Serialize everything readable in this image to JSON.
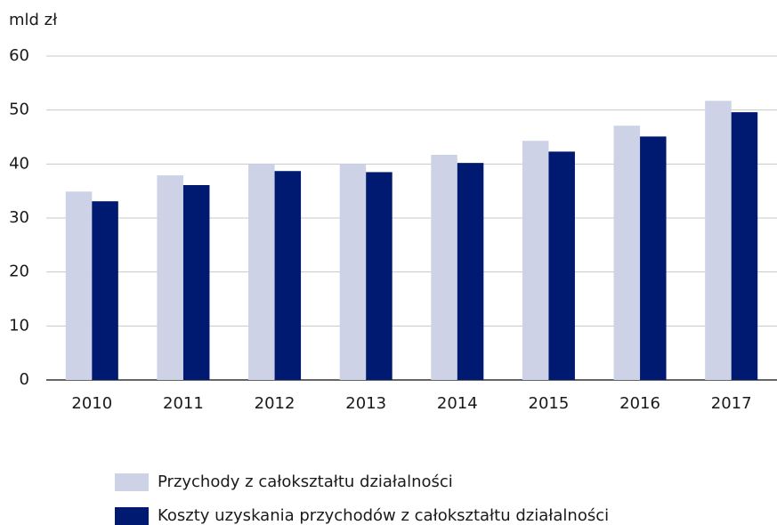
{
  "chart_data": {
    "type": "bar",
    "y_label": "mld zł",
    "categories": [
      "2010",
      "2011",
      "2012",
      "2013",
      "2014",
      "2015",
      "2016",
      "2017"
    ],
    "series": [
      {
        "name": "Przychody z całokształtu działalności",
        "color": "#cdd2e6",
        "values": [
          34.9,
          37.9,
          40.0,
          40.0,
          41.7,
          44.3,
          47.1,
          51.7
        ]
      },
      {
        "name": "Koszty uzyskania przychodów z całokształtu działalności",
        "color": "#001a72",
        "values": [
          33.1,
          36.1,
          38.7,
          38.5,
          40.2,
          42.3,
          45.1,
          49.6
        ]
      }
    ],
    "ylim": [
      0,
      60
    ],
    "yticks": [
      0,
      10,
      20,
      30,
      40,
      50,
      60
    ],
    "grid": true,
    "legend": "bottom"
  }
}
